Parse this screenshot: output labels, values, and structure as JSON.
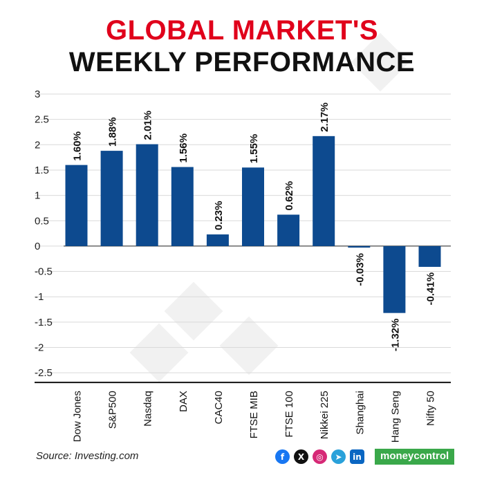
{
  "header": {
    "title_line1": "GLOBAL MARKET'S",
    "title_line2": "WEEKLY PERFORMANCE"
  },
  "colors": {
    "bar": "#0d4a8f",
    "title_accent": "#e0001b",
    "grid": "#d9d9d9",
    "brand": "#3aa84a"
  },
  "chart_data": {
    "type": "bar",
    "categories": [
      "Dow Jones",
      "S&P500",
      "Nasdaq",
      "DAX",
      "CAC40",
      "FTSE MIB",
      "FTSE 100",
      "Nikkei 225",
      "Shanghai",
      "Hang Seng",
      "Nifty 50"
    ],
    "values": [
      1.6,
      1.88,
      2.01,
      1.56,
      0.23,
      1.55,
      0.62,
      2.17,
      -0.03,
      -1.32,
      -0.41
    ],
    "data_labels": [
      "1.60%",
      "1.88%",
      "2.01%",
      "1.56%",
      "0.23%",
      "1.55%",
      "0.62%",
      "2.17%",
      "-0.03%",
      "-1.32%",
      "-0.41%"
    ],
    "yticks": [
      "3",
      "2.5",
      "2",
      "1.5",
      "1",
      "0.5",
      "0",
      "-0.5",
      "-1",
      "-1.5",
      "-2",
      "-2.5"
    ],
    "ylim": [
      -2.5,
      3
    ],
    "grid": true
  },
  "footer": {
    "source": "Source: Investing.com",
    "brand": "moneycontrol",
    "socials": [
      {
        "icon": "facebook-icon",
        "glyph": "f",
        "color": "#1877f2"
      },
      {
        "icon": "x-icon",
        "glyph": "X",
        "color": "#111111"
      },
      {
        "icon": "instagram-icon",
        "glyph": "◎",
        "color": "#d62976"
      },
      {
        "icon": "telegram-icon",
        "glyph": "➤",
        "color": "#2aa1da"
      },
      {
        "icon": "linkedin-icon",
        "glyph": "in",
        "color": "#0a66c2"
      }
    ]
  }
}
